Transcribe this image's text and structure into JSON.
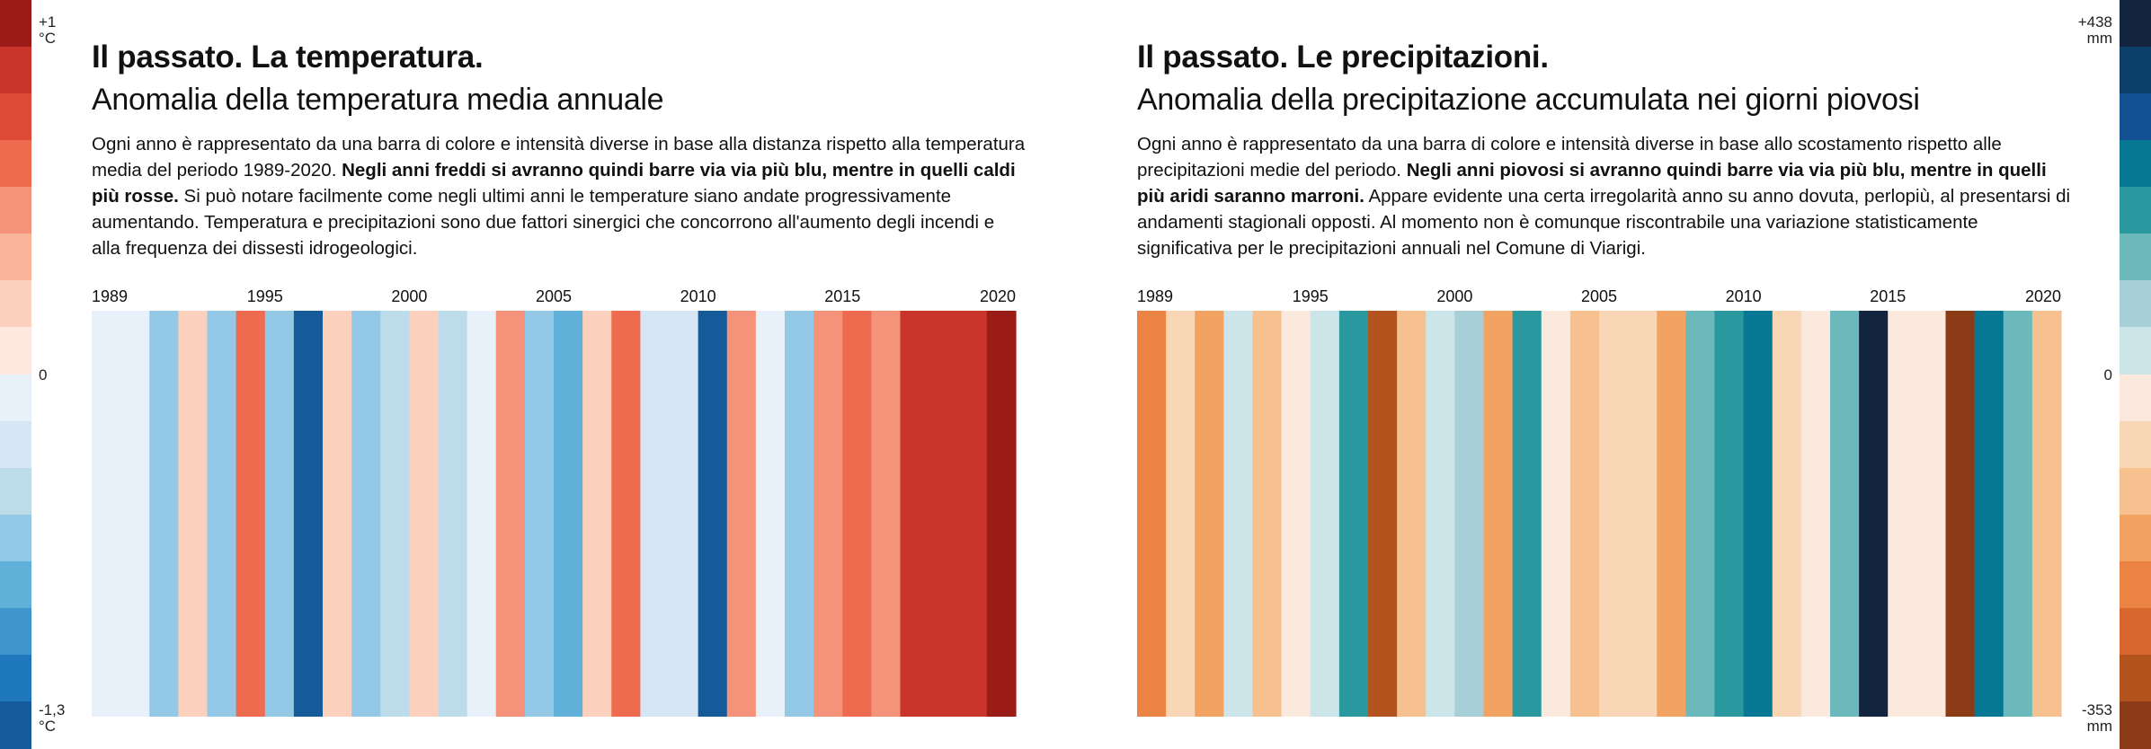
{
  "legend_left": {
    "top_label": [
      "+1",
      "°C"
    ],
    "middle_label": "0",
    "bottom_label": [
      "-1,3",
      "°C"
    ],
    "colors": [
      "#9b1c16",
      "#c9352a",
      "#df4a36",
      "#ef6b4f",
      "#f4937a",
      "#f8b59a",
      "#fbd0bd",
      "#fde7de",
      "#e8f0fa",
      "#d6e6f5",
      "#bcdcea",
      "#93c9e6",
      "#61b0da",
      "#3f96cd",
      "#1f78bb",
      "#155a99"
    ]
  },
  "legend_right": {
    "top_label": [
      "+438",
      "mm"
    ],
    "middle_label": "0",
    "bottom_label": [
      "-353",
      "mm"
    ],
    "colors": [
      "#13253e",
      "#0d3f6b",
      "#125292",
      "#067893",
      "#2a989f",
      "#6bb9bb",
      "#a6cfd7",
      "#cbe5e9",
      "#fce9de",
      "#f9d7b6",
      "#f7c08f",
      "#f3a361",
      "#ea8343",
      "#d8672f",
      "#b3541f",
      "#8c3b17"
    ]
  },
  "left_panel": {
    "title": "Il passato. La temperatura.",
    "subtitle": "Anomalia della temperatura media annuale",
    "description": {
      "part1": "Ogni anno è rappresentato da una barra di colore e intensità diverse in base alla distanza rispetto alla temperatura media del periodo 1989-2020. ",
      "bold": "Negli anni freddi si avranno quindi barre via via più blu, mentre in quelli caldi più rosse.",
      "part2": " Si può notare facilmente come negli ultimi anni le temperature siano andate progressivamente aumentando. Temperatura e precipitazioni sono due fattori sinergici che concorrono all'aumento degli incendi e alla frequenza dei dissesti idrogeologici."
    }
  },
  "right_panel": {
    "title": "Il passato. Le precipitazioni.",
    "subtitle": "Anomalia della precipitazione accumulata nei giorni piovosi",
    "description": {
      "part1": "Ogni anno è rappresentato da una barra di colore e intensità diverse in base allo scostamento rispetto alle precipitazioni medie del periodo. ",
      "bold": "Negli anni piovosi si avranno quindi barre via via più blu, mentre in quelli più aridi saranno marroni.",
      "part2": " Appare evidente una certa irregolarità anno su anno dovuta, perlopiù, al presentarsi di andamenti stagionali opposti. Al momento non è comunque riscontrabile una variazione statisticamente significativa per le precipitazioni annuali nel Comune di Viarigi."
    }
  },
  "chart_data": [
    {
      "type": "bar",
      "chart": "temperature-stripes",
      "years": [
        1989,
        1990,
        1991,
        1992,
        1993,
        1994,
        1995,
        1996,
        1997,
        1998,
        1999,
        2000,
        2001,
        2002,
        2003,
        2004,
        2005,
        2006,
        2007,
        2008,
        2009,
        2010,
        2011,
        2012,
        2013,
        2014,
        2015,
        2016,
        2017,
        2018,
        2019,
        2020
      ],
      "tick_labels": [
        "1989",
        "1995",
        "2000",
        "2005",
        "2010",
        "2015",
        "2020"
      ],
      "tick_years": [
        1989,
        1995,
        2000,
        2005,
        2010,
        2015,
        2020
      ],
      "colors": [
        "#e8f0fa",
        "#e8f0fa",
        "#93c9e6",
        "#fbd0bd",
        "#93c9e6",
        "#ef6b4f",
        "#93c9e6",
        "#155a99",
        "#fbd0bd",
        "#93c9e6",
        "#bcdcea",
        "#fbd0bd",
        "#bcdcea",
        "#e8f0fa",
        "#f4937a",
        "#93c9e6",
        "#61b0da",
        "#fbd0bd",
        "#ef6b4f",
        "#d6e6f5",
        "#d6e6f5",
        "#155a99",
        "#f4937a",
        "#e8f0fa",
        "#93c9e6",
        "#f4937a",
        "#ef6b4f",
        "#f4937a",
        "#c9352a",
        "#c9352a",
        "#c9352a",
        "#9b1c16"
      ]
    },
    {
      "type": "bar",
      "chart": "precipitation-stripes",
      "years": [
        1989,
        1990,
        1991,
        1992,
        1993,
        1994,
        1995,
        1996,
        1997,
        1998,
        1999,
        2000,
        2001,
        2002,
        2003,
        2004,
        2005,
        2006,
        2007,
        2008,
        2009,
        2010,
        2011,
        2012,
        2013,
        2014,
        2015,
        2016,
        2017,
        2018,
        2019,
        2020
      ],
      "tick_labels": [
        "1989",
        "1995",
        "2000",
        "2005",
        "2010",
        "2015",
        "2020"
      ],
      "tick_years": [
        1989,
        1995,
        2000,
        2005,
        2010,
        2015,
        2020
      ],
      "colors": [
        "#ea8343",
        "#f9d7b6",
        "#f3a361",
        "#cbe5e9",
        "#f7c08f",
        "#fce9de",
        "#cbe5e9",
        "#2a989f",
        "#b3541f",
        "#f7c08f",
        "#cbe5e9",
        "#a6cfd7",
        "#f3a361",
        "#2a989f",
        "#fce9de",
        "#f7c08f",
        "#f9d7b6",
        "#f9d7b6",
        "#f3a361",
        "#6bb9bb",
        "#2a989f",
        "#067893",
        "#f9d7b6",
        "#fce9de",
        "#6bb9bb",
        "#13253e",
        "#fce9de",
        "#fce9de",
        "#8c3b17",
        "#067893",
        "#6bb9bb",
        "#f7c08f"
      ]
    }
  ]
}
